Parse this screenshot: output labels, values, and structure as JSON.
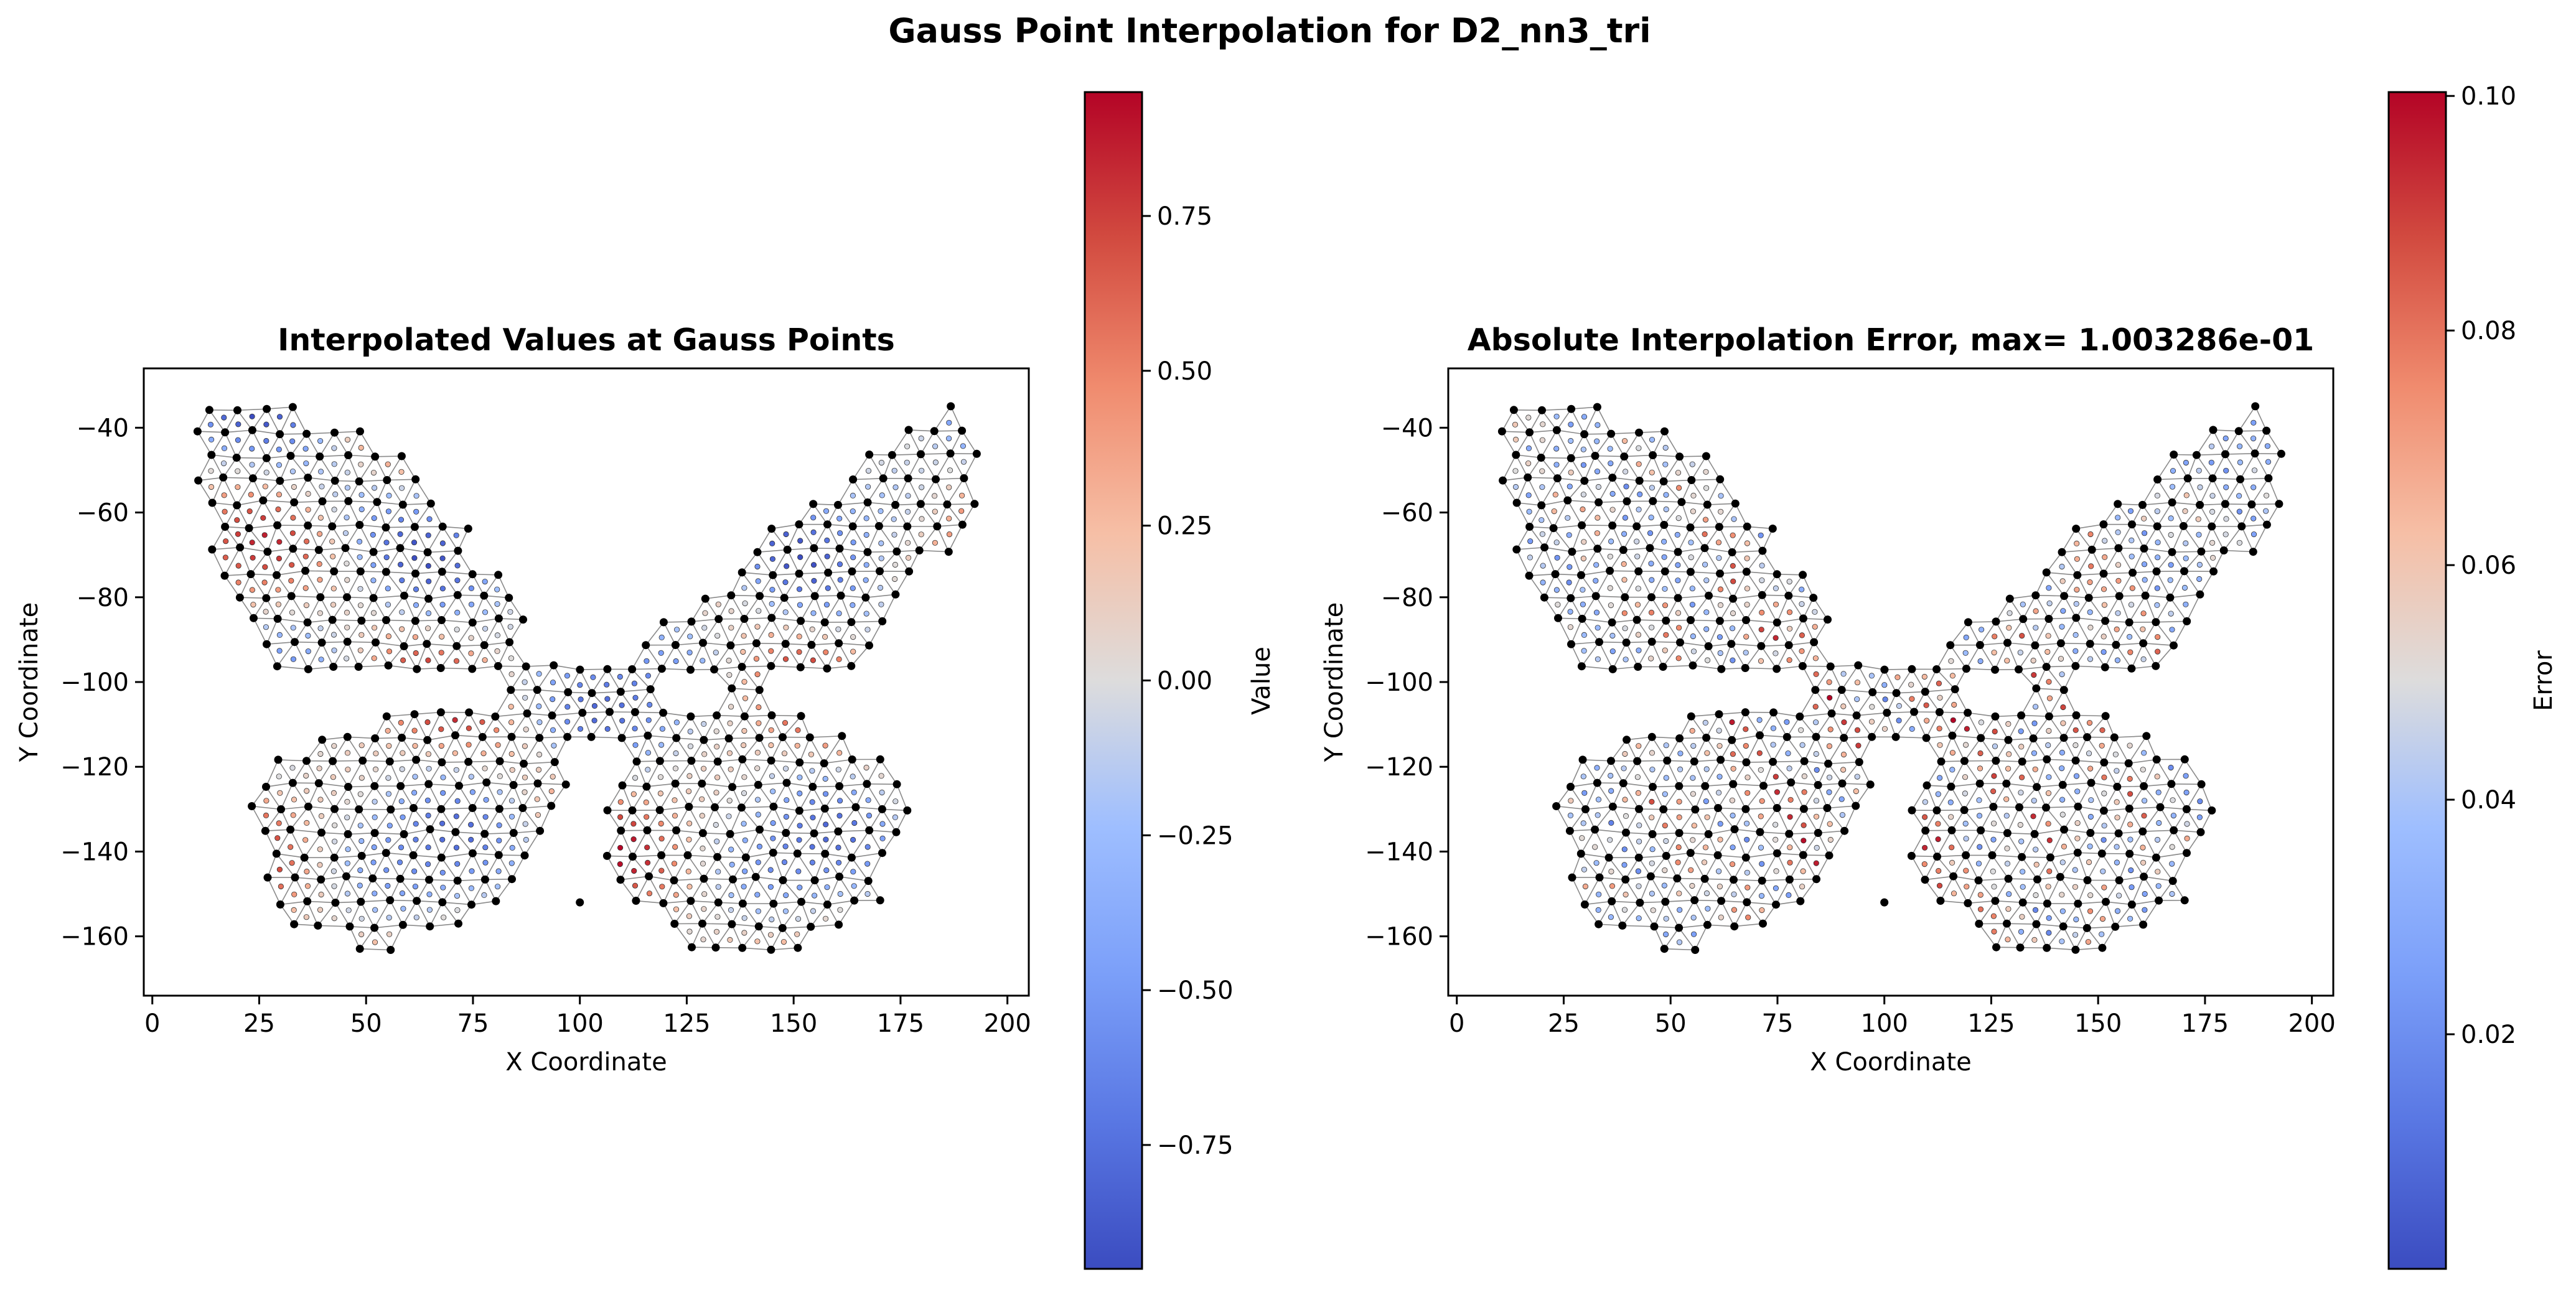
{
  "figure": {
    "suptitle": "Gauss Point Interpolation for D2_nn3_tri"
  },
  "chart_data": [
    {
      "type": "scatter",
      "title": "Interpolated Values at Gauss Points",
      "xlabel": "X Coordinate",
      "ylabel": "Y Coordinate",
      "xlim": [
        -2,
        205
      ],
      "ylim": [
        -174,
        -26
      ],
      "xticks": [
        "0",
        "25",
        "50",
        "75",
        "100",
        "125",
        "150",
        "175",
        "200"
      ],
      "xtick_values": [
        0,
        25,
        50,
        75,
        100,
        125,
        150,
        175,
        200
      ],
      "yticks": [
        "−40",
        "−60",
        "−80",
        "−100",
        "−120",
        "−140",
        "−160"
      ],
      "ytick_values": [
        -40,
        -60,
        -80,
        -100,
        -120,
        -140,
        -160
      ],
      "grid": false,
      "mesh": "triangulated butterfly-shaped domain, black node markers, gauss points colored by value",
      "colormap": "coolwarm",
      "colorbar": {
        "label": "Value",
        "range": [
          -0.95,
          0.95
        ],
        "ticks": [
          "−0.75",
          "−0.50",
          "−0.25",
          "0.00",
          "0.25",
          "0.50",
          "0.75"
        ],
        "tick_values": [
          -0.75,
          -0.5,
          -0.25,
          0.0,
          0.25,
          0.5,
          0.75
        ]
      }
    },
    {
      "type": "scatter",
      "title": "Absolute Interpolation Error, max= 1.003286e-01",
      "xlabel": "X Coordinate",
      "ylabel": "Y Coordinate",
      "xlim": [
        -2,
        205
      ],
      "ylim": [
        -174,
        -26
      ],
      "xticks": [
        "0",
        "25",
        "50",
        "75",
        "100",
        "125",
        "150",
        "175",
        "200"
      ],
      "xtick_values": [
        0,
        25,
        50,
        75,
        100,
        125,
        150,
        175,
        200
      ],
      "yticks": [
        "−40",
        "−60",
        "−80",
        "−100",
        "−120",
        "−140",
        "−160"
      ],
      "ytick_values": [
        -40,
        -60,
        -80,
        -100,
        -120,
        -140,
        -160
      ],
      "grid": false,
      "mesh": "triangulated butterfly-shaped domain, black node markers, gauss points colored by absolute error",
      "colormap": "coolwarm",
      "colorbar": {
        "label": "Error",
        "range": [
          0.0,
          0.1003286
        ],
        "ticks": [
          "0.02",
          "0.04",
          "0.06",
          "0.08",
          "0.10"
        ],
        "tick_values": [
          0.02,
          0.04,
          0.06,
          0.08,
          0.1
        ]
      }
    }
  ]
}
